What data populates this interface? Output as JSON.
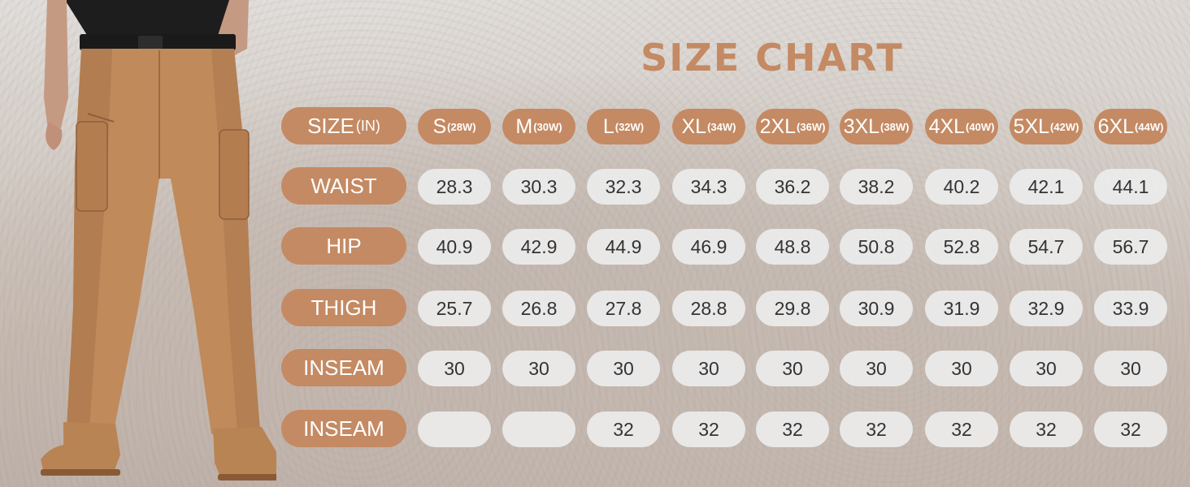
{
  "title": "SIZE CHART",
  "header": {
    "label_main": "SIZE",
    "label_unit": "(IN)",
    "sizes": [
      {
        "main": "S",
        "waist": "(28W)"
      },
      {
        "main": "M",
        "waist": "(30W)"
      },
      {
        "main": "L",
        "waist": "(32W)"
      },
      {
        "main": "XL",
        "waist": "(34W)"
      },
      {
        "main": "2XL",
        "waist": "(36W)"
      },
      {
        "main": "3XL",
        "waist": "(38W)"
      },
      {
        "main": "4XL",
        "waist": "(40W)"
      },
      {
        "main": "5XL",
        "waist": "(42W)"
      },
      {
        "main": "6XL",
        "waist": "(44W)"
      }
    ]
  },
  "rows": [
    {
      "label": "WAIST",
      "values": [
        "28.3",
        "30.3",
        "32.3",
        "34.3",
        "36.2",
        "38.2",
        "40.2",
        "42.1",
        "44.1"
      ]
    },
    {
      "label": "HIP",
      "values": [
        "40.9",
        "42.9",
        "44.9",
        "46.9",
        "48.8",
        "50.8",
        "52.8",
        "54.7",
        "56.7"
      ]
    },
    {
      "label": "THIGH",
      "values": [
        "25.7",
        "26.8",
        "27.8",
        "28.8",
        "29.8",
        "30.9",
        "31.9",
        "32.9",
        "33.9"
      ]
    },
    {
      "label": "INSEAM",
      "values": [
        "30",
        "30",
        "30",
        "30",
        "30",
        "30",
        "30",
        "30",
        "30"
      ]
    },
    {
      "label": "INSEAM",
      "values": [
        "",
        "",
        "32",
        "32",
        "32",
        "32",
        "32",
        "32",
        "32"
      ]
    }
  ],
  "colors": {
    "accent": "#c48a63",
    "cell_bg": "#ececec",
    "value_text": "#333333"
  }
}
